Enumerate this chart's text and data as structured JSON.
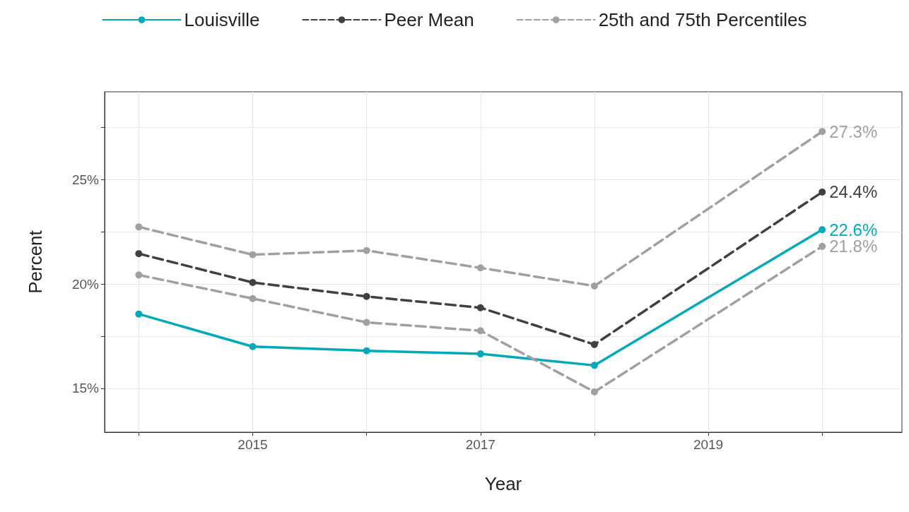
{
  "chart_data": {
    "type": "line",
    "xlabel": "Year",
    "ylabel": "Percent",
    "x": [
      2014,
      2015,
      2016,
      2017,
      2018,
      2020
    ],
    "series": [
      {
        "name": "Louisville",
        "color": "#00a9b8",
        "line_style": "solid",
        "values": [
          18.56,
          17.0,
          16.8,
          16.65,
          16.1,
          22.6
        ],
        "value_labels": [
          null,
          null,
          null,
          null,
          null,
          "22.6%"
        ]
      },
      {
        "name": "Peer Mean",
        "color": "#404040",
        "line_style": "dashed",
        "values": [
          21.45,
          20.07,
          19.4,
          18.86,
          17.1,
          24.4
        ],
        "value_labels": [
          null,
          null,
          null,
          null,
          null,
          "24.4%"
        ]
      },
      {
        "name": "25th and 75th Percentiles",
        "color": "#a0a0a0",
        "line_style": "dashed",
        "values": [
          22.73,
          21.4,
          21.6,
          20.77,
          19.9,
          27.3
        ],
        "value_labels": [
          null,
          null,
          null,
          null,
          null,
          "27.3%"
        ]
      },
      {
        "color": "#a0a0a0",
        "line_style": "dashed",
        "values": [
          20.43,
          19.3,
          18.16,
          17.76,
          14.83,
          21.8
        ],
        "value_labels": [
          null,
          null,
          null,
          null,
          null,
          "21.8%"
        ]
      }
    ],
    "xlim": [
      2013.7,
      2020.7
    ],
    "xticks": [
      {
        "value": 2014,
        "label": null
      },
      2015,
      {
        "value": 2016,
        "label": null
      },
      2017,
      {
        "value": 2018,
        "label": null
      },
      2019,
      {
        "value": 2020,
        "label": null
      }
    ],
    "ylim": [
      12.9,
      29.2
    ],
    "yticks": [
      {
        "value": 15,
        "label": "15%"
      },
      {
        "value": 17.5,
        "label": null
      },
      {
        "value": 20,
        "label": "20%"
      },
      {
        "value": 22.5,
        "label": null
      },
      {
        "value": 25,
        "label": "25%"
      },
      {
        "value": 27.5,
        "label": null
      }
    ],
    "grid": true,
    "legend": "top",
    "marker": "circle"
  }
}
